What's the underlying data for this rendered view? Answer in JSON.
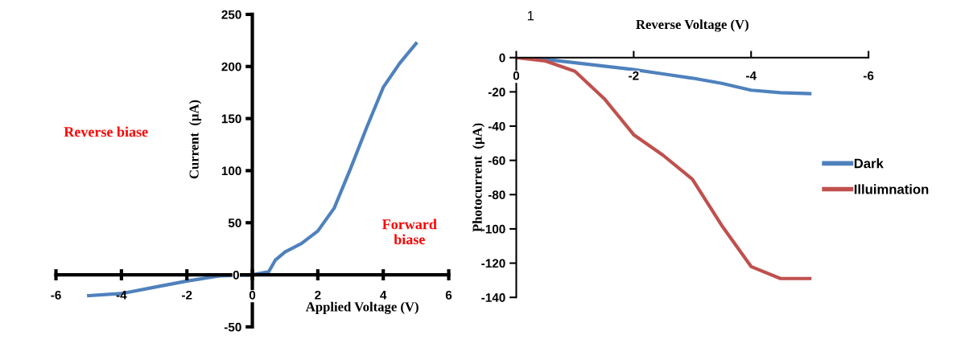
{
  "chart_data": [
    {
      "type": "line",
      "xlabel": "Applied Voltage (V)",
      "ylabel": "Current  (µA)",
      "x": [
        -5,
        -4,
        -3,
        -2,
        -1,
        0,
        0.5,
        0.7,
        1,
        1.5,
        2,
        2.5,
        3,
        3.5,
        4,
        4.5,
        5
      ],
      "series": [
        {
          "color": "#4f81bd",
          "values": [
            -20,
            -18,
            -12,
            -6,
            -1,
            0,
            3,
            14,
            22,
            30,
            42,
            64,
            102,
            142,
            180,
            203,
            222
          ]
        }
      ],
      "xlim": [
        -6,
        6
      ],
      "xticks": [
        -6,
        -4,
        -2,
        0,
        2,
        4,
        6
      ],
      "ylim": [
        -50,
        250
      ],
      "yticks": [
        -50,
        0,
        50,
        100,
        150,
        200,
        250
      ],
      "annotations": [
        "Reverse biase",
        "Forward\nbiase"
      ],
      "grid": false,
      "legend": false,
      "marker": "none",
      "line_style": "solid"
    },
    {
      "type": "line",
      "xlabel": "Reverse Voltage (V)",
      "ylabel": "Photocurrent  (µA)",
      "x": [
        0,
        -0.5,
        -1,
        -1.5,
        -2,
        -2.5,
        -3,
        -3.5,
        -4,
        -4.5,
        -5
      ],
      "series": [
        {
          "name": "Dark",
          "color": "#4f81bd",
          "values": [
            0,
            -1,
            -3,
            -5,
            -7,
            -9.5,
            -12,
            -15,
            -19,
            -20.5,
            -21
          ]
        },
        {
          "name": "Illuimnation",
          "color": "#c0504d",
          "values": [
            0,
            -2,
            -8,
            -24,
            -45,
            -57,
            -71,
            -98,
            -122,
            -129,
            -129
          ]
        }
      ],
      "xlim": [
        0,
        -6
      ],
      "xticks": [
        0,
        -2,
        -4,
        -6
      ],
      "ylim": [
        -140,
        0
      ],
      "yticks": [
        -140,
        -120,
        -100,
        -80,
        -60,
        -40,
        -20,
        0
      ],
      "annotations": [
        "1"
      ],
      "grid": false,
      "legend": "right",
      "marker": "none",
      "line_style": "solid"
    }
  ]
}
